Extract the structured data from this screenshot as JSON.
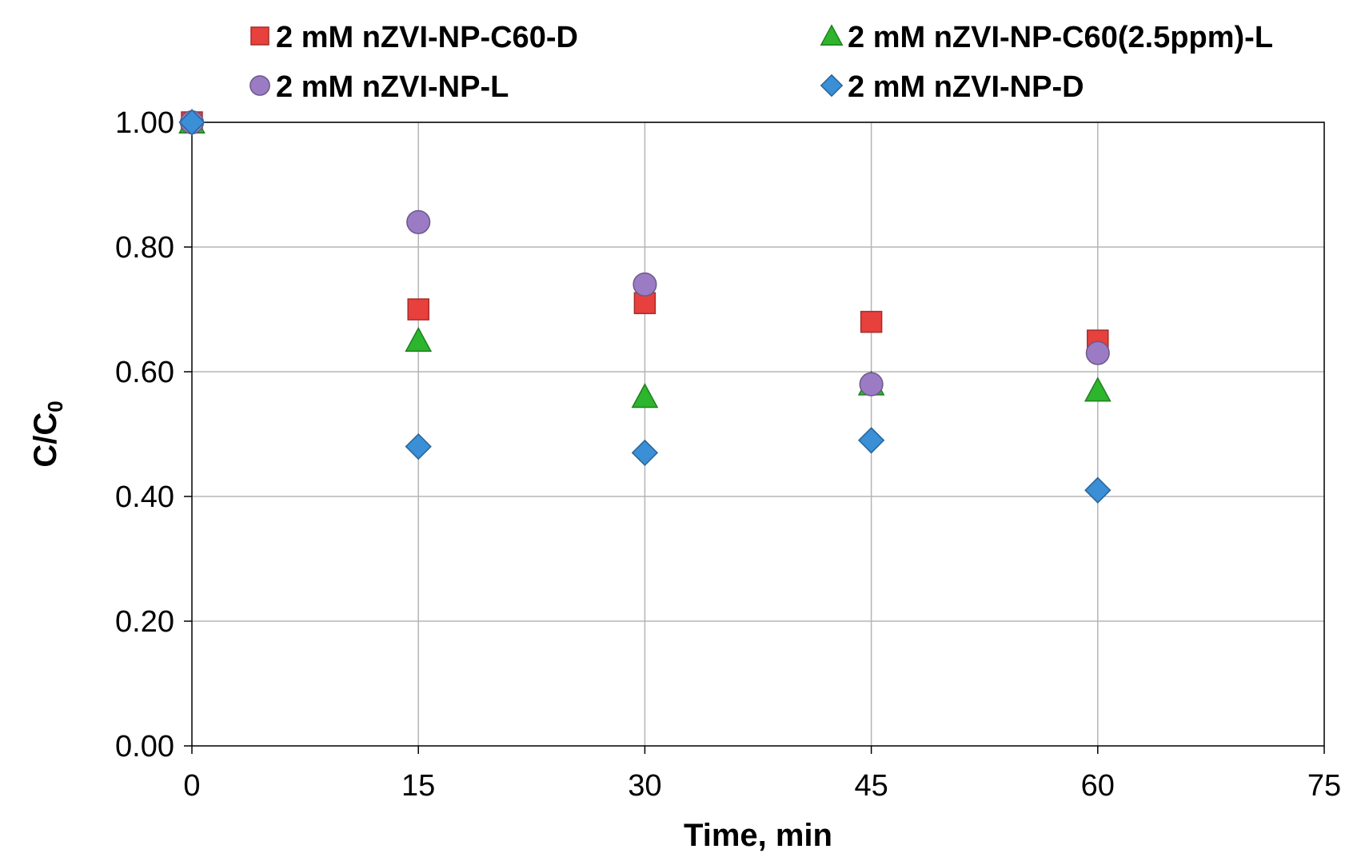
{
  "chart_data": {
    "type": "scatter",
    "title": "",
    "xlabel": "Time, min",
    "ylabel": {
      "main": "C/C",
      "subscript": "0"
    },
    "xlim": [
      0,
      75
    ],
    "ylim": [
      0,
      1.0
    ],
    "xticks": [
      0,
      15,
      30,
      45,
      60,
      75
    ],
    "yticks": [
      0.0,
      0.2,
      0.4,
      0.6,
      0.8,
      1.0
    ],
    "xtick_labels": [
      "0",
      "15",
      "30",
      "45",
      "60",
      "75"
    ],
    "ytick_labels": [
      "0.00",
      "0.20",
      "0.40",
      "0.60",
      "0.80",
      "1.00"
    ],
    "grid": true,
    "legend_position": "top",
    "series": [
      {
        "name": "2 mM nZVI-NP-C60-D",
        "marker": "square",
        "color": "#e8403c",
        "x": [
          0,
          15,
          30,
          45,
          60
        ],
        "y": [
          1.0,
          0.7,
          0.71,
          0.68,
          0.65
        ]
      },
      {
        "name": "2 mM nZVI-NP-C60(2.5ppm)-L",
        "marker": "triangle",
        "color": "#2db52d",
        "x": [
          0,
          15,
          30,
          45,
          60
        ],
        "y": [
          1.0,
          0.65,
          0.56,
          0.58,
          0.57
        ]
      },
      {
        "name": "2 mM nZVI-NP-L",
        "marker": "circle",
        "color": "#9b7cc4",
        "x": [
          0,
          15,
          30,
          45,
          60
        ],
        "y": [
          1.0,
          0.84,
          0.74,
          0.58,
          0.63
        ]
      },
      {
        "name": "2 mM nZVI-NP-D",
        "marker": "diamond",
        "color": "#3a8fd6",
        "x": [
          0,
          15,
          30,
          45,
          60
        ],
        "y": [
          1.0,
          0.48,
          0.47,
          0.49,
          0.41
        ]
      }
    ]
  }
}
